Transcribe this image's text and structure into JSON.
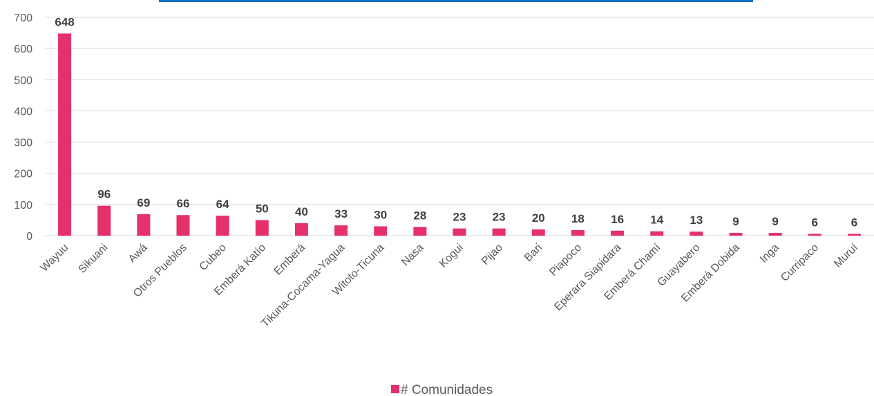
{
  "chart_data": {
    "type": "bar",
    "categories": [
      "Wayuu",
      "Sikuani",
      "Awá",
      "Otros Pueblos",
      "Cubeo",
      "Emberá Katío",
      "Emberá",
      "Tikuna-Cocama-Yagua",
      "Witoto-Ticuna",
      "Nasa",
      "Kogui",
      "Pijao",
      "Bari",
      "Piapoco",
      "Eperara Siapidara",
      "Emberá Chamí",
      "Guayabero",
      "Emberá Dobida",
      "Inga",
      "Curripaco",
      "Muruí"
    ],
    "series": [
      {
        "name": "# Comunidades",
        "values": [
          648,
          96,
          69,
          66,
          64,
          50,
          40,
          33,
          30,
          28,
          23,
          23,
          20,
          18,
          16,
          14,
          13,
          9,
          9,
          6,
          6
        ]
      }
    ],
    "ylim": [
      0,
      700
    ],
    "yticks": [
      0,
      100,
      200,
      300,
      400,
      500,
      600,
      700
    ],
    "grid": true,
    "legend": "bottom",
    "colors": {
      "bar": "#e6306a",
      "grid": "#d9d9d9",
      "title_bar": "#0a6fc2"
    }
  }
}
